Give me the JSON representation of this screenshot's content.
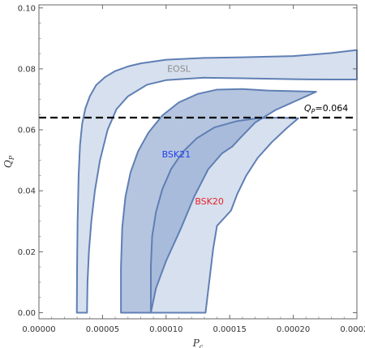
{
  "chart_data": {
    "type": "area",
    "xlabel": "P_c",
    "ylabel": "Q_P",
    "xlim": [
      0,
      0.00025
    ],
    "ylim": [
      -0.002,
      0.101
    ],
    "grid": false,
    "x_ticks": [
      {
        "value": 0.0,
        "label": "0.00000"
      },
      {
        "value": 5e-05,
        "label": "0.00005"
      },
      {
        "value": 0.0001,
        "label": "0.00010"
      },
      {
        "value": 0.00015,
        "label": "0.00015"
      },
      {
        "value": 0.0002,
        "label": "0.00020"
      },
      {
        "value": 0.00025,
        "label": "0.00025"
      }
    ],
    "y_ticks": [
      {
        "value": 0.0,
        "label": "0.00"
      },
      {
        "value": 0.02,
        "label": "0.02"
      },
      {
        "value": 0.04,
        "label": "0.04"
      },
      {
        "value": 0.06,
        "label": "0.06"
      },
      {
        "value": 0.08,
        "label": "0.08"
      },
      {
        "value": 0.1,
        "label": "0.10"
      }
    ],
    "fill_color": "#d5deed",
    "edge_color": "#5f7fb4",
    "overlap_color": "#9fb2d6",
    "series": [
      {
        "name": "EOSL",
        "label_color": "#8c8c8c",
        "label_at": [
          0.00011,
          0.079
        ],
        "boundary": [
          [
            2.98e-05,
            0.0
          ],
          [
            3e-05,
            0.015
          ],
          [
            3.04e-05,
            0.03
          ],
          [
            3.12e-05,
            0.045
          ],
          [
            3.23e-05,
            0.055
          ],
          [
            3.4e-05,
            0.062
          ],
          [
            3.65e-05,
            0.067
          ],
          [
            4e-05,
            0.071
          ],
          [
            4.5e-05,
            0.0747
          ],
          [
            5.2e-05,
            0.0773
          ],
          [
            6e-05,
            0.0793
          ],
          [
            7e-05,
            0.0808
          ],
          [
            8e-05,
            0.0818
          ],
          [
            0.0001,
            0.083
          ],
          [
            0.00013,
            0.0836
          ],
          [
            0.00016,
            0.0838
          ],
          [
            0.0002,
            0.0842
          ],
          [
            0.00023,
            0.0852
          ],
          [
            0.00025,
            0.0862
          ],
          [
            0.00025,
            0.0765
          ],
          [
            0.00023,
            0.0765
          ],
          [
            0.0002,
            0.0766
          ],
          [
            0.00016,
            0.0769
          ],
          [
            0.00013,
            0.0771
          ],
          [
            0.0001,
            0.0763
          ],
          [
            8.5e-05,
            0.0748
          ],
          [
            7e-05,
            0.071
          ],
          [
            6.1e-05,
            0.0668
          ],
          [
            5.4e-05,
            0.06
          ],
          [
            4.8e-05,
            0.05
          ],
          [
            4.4e-05,
            0.04
          ],
          [
            4.12e-05,
            0.03
          ],
          [
            3.93e-05,
            0.02
          ],
          [
            3.82e-05,
            0.01
          ],
          [
            3.78e-05,
            0.0
          ]
        ]
      },
      {
        "name": "BSK21",
        "label_color": "#1f3ff0",
        "label_at": [
          0.000108,
          0.051
        ],
        "boundary": [
          [
            6.45e-05,
            0.0
          ],
          [
            6.45e-05,
            0.015
          ],
          [
            6.55e-05,
            0.028
          ],
          [
            6.8e-05,
            0.038
          ],
          [
            7.2e-05,
            0.046
          ],
          [
            7.8e-05,
            0.053
          ],
          [
            8.6e-05,
            0.059
          ],
          [
            9.7e-05,
            0.0647
          ],
          [
            0.00011,
            0.069
          ],
          [
            0.000125,
            0.0718
          ],
          [
            0.00014,
            0.0732
          ],
          [
            0.00016,
            0.0734
          ],
          [
            0.00018,
            0.0729
          ],
          [
            0.0002,
            0.0727
          ],
          [
            0.000218,
            0.0725
          ],
          [
            0.000202,
            0.0695
          ],
          [
            0.000186,
            0.0665
          ],
          [
            0.00017,
            0.0624
          ],
          [
            0.000158,
            0.0572
          ],
          [
            0.000152,
            0.0545
          ],
          [
            0.000144,
            0.0523
          ],
          [
            0.000133,
            0.047
          ],
          [
            0.000122,
            0.038
          ],
          [
            0.000112,
            0.028
          ],
          [
            0.0001,
            0.017
          ],
          [
            9.2e-05,
            0.008
          ],
          [
            8.8e-05,
            0.0
          ]
        ]
      },
      {
        "name": "BSK20",
        "label_color": "#e8202a",
        "label_at": [
          0.000134,
          0.0355
        ],
        "boundary": [
          [
            8.8e-05,
            0.0
          ],
          [
            8.8e-05,
            0.015
          ],
          [
            8.9e-05,
            0.025
          ],
          [
            9.2e-05,
            0.033
          ],
          [
            9.7e-05,
            0.0405
          ],
          [
            0.000104,
            0.0472
          ],
          [
            0.000113,
            0.0527
          ],
          [
            0.000124,
            0.0572
          ],
          [
            0.000138,
            0.0608
          ],
          [
            0.000155,
            0.0628
          ],
          [
            0.000172,
            0.0638
          ],
          [
            0.000188,
            0.064
          ],
          [
            0.000204,
            0.0638
          ],
          [
            0.000195,
            0.0606
          ],
          [
            0.000183,
            0.0559
          ],
          [
            0.000172,
            0.0508
          ],
          [
            0.000163,
            0.045
          ],
          [
            0.000156,
            0.039
          ],
          [
            0.000151,
            0.0335
          ],
          [
            0.00014,
            0.0285
          ],
          [
            0.000137,
            0.021
          ],
          [
            0.000135,
            0.014
          ],
          [
            0.000133,
            0.007
          ],
          [
            0.000131,
            0.0
          ]
        ]
      }
    ],
    "hline": {
      "y": 0.064,
      "style": "dashed",
      "color": "#000000",
      "label": "Q_P=0.064"
    }
  }
}
